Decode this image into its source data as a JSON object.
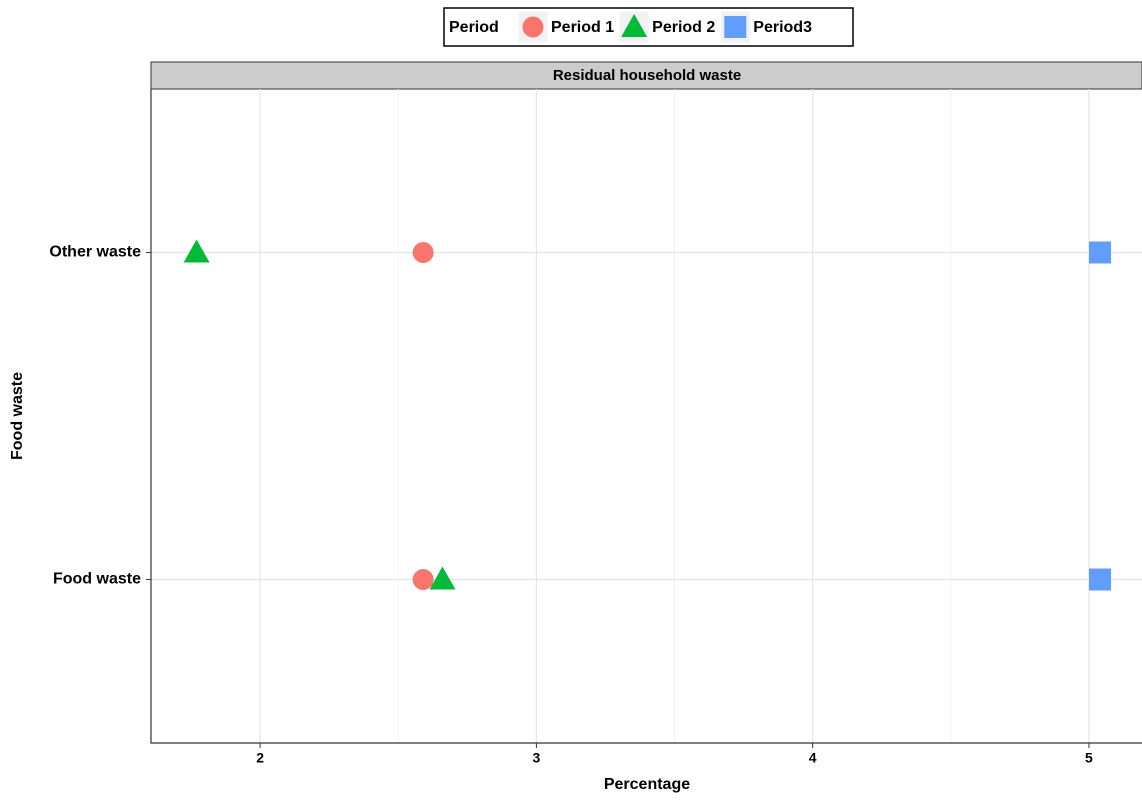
{
  "chart_data": {
    "type": "scatter",
    "strip": "Residual household waste",
    "xlabel": "Percentage",
    "ylabel": "Food waste",
    "legend_title": "Period",
    "legend_position": "top",
    "categories": [
      "Food waste",
      "Other waste"
    ],
    "series": [
      {
        "name": "Period 1",
        "color": "#f8766d",
        "marker": "circle",
        "values": [
          2.59,
          2.59
        ]
      },
      {
        "name": "Period 2",
        "color": "#00ba38",
        "marker": "triangle",
        "values": [
          2.66,
          1.77
        ]
      },
      {
        "name": "Period3",
        "color": "#619cff",
        "marker": "square",
        "values": [
          5.04,
          5.04
        ]
      }
    ],
    "xlim": [
      1.605,
      5.192
    ],
    "xticks": [
      2,
      3,
      4,
      5
    ],
    "xminor": [
      2.5,
      3.5,
      4.5
    ],
    "grid": true
  }
}
